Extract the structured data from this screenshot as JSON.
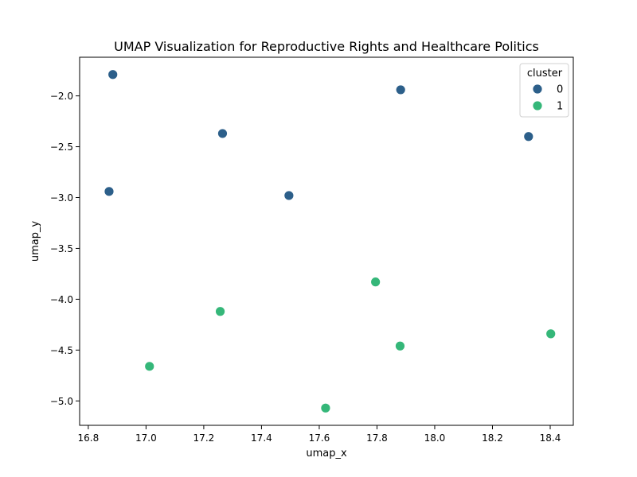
{
  "chart_data": {
    "type": "scatter",
    "title": "UMAP Visualization for Reproductive Rights and Healthcare Politics",
    "xlabel": "umap_x",
    "ylabel": "umap_y",
    "xlim": [
      16.77,
      18.48
    ],
    "ylim": [
      -5.24,
      -1.62
    ],
    "xticks": [
      16.8,
      17.0,
      17.2,
      17.4,
      17.6,
      17.8,
      18.0,
      18.2,
      18.4
    ],
    "yticks": [
      -2.0,
      -2.5,
      -3.0,
      -3.5,
      -4.0,
      -4.5,
      -5.0
    ],
    "xtick_labels": [
      "16.8",
      "17.0",
      "17.2",
      "17.4",
      "17.6",
      "17.8",
      "18.0",
      "18.2",
      "18.4"
    ],
    "ytick_labels": [
      "−2.0",
      "−2.5",
      "−3.0",
      "−3.5",
      "−4.0",
      "−4.5",
      "−5.0"
    ],
    "grid": false,
    "legend": {
      "title": "cluster",
      "placement": "top-right",
      "entries": [
        {
          "label": "0",
          "color": "#2c5f8a"
        },
        {
          "label": "1",
          "color": "#35b779"
        }
      ]
    },
    "series": [
      {
        "name": "0",
        "color": "#2c5f8a",
        "points": [
          {
            "x": 16.885,
            "y": -1.79
          },
          {
            "x": 17.265,
            "y": -2.37
          },
          {
            "x": 16.872,
            "y": -2.94
          },
          {
            "x": 17.495,
            "y": -2.98
          },
          {
            "x": 17.882,
            "y": -1.94
          },
          {
            "x": 18.325,
            "y": -2.4
          }
        ]
      },
      {
        "name": "1",
        "color": "#35b779",
        "points": [
          {
            "x": 17.795,
            "y": -3.83
          },
          {
            "x": 17.257,
            "y": -4.12
          },
          {
            "x": 17.88,
            "y": -4.46
          },
          {
            "x": 18.402,
            "y": -4.34
          },
          {
            "x": 17.012,
            "y": -4.66
          },
          {
            "x": 17.622,
            "y": -5.07
          }
        ]
      }
    ]
  }
}
